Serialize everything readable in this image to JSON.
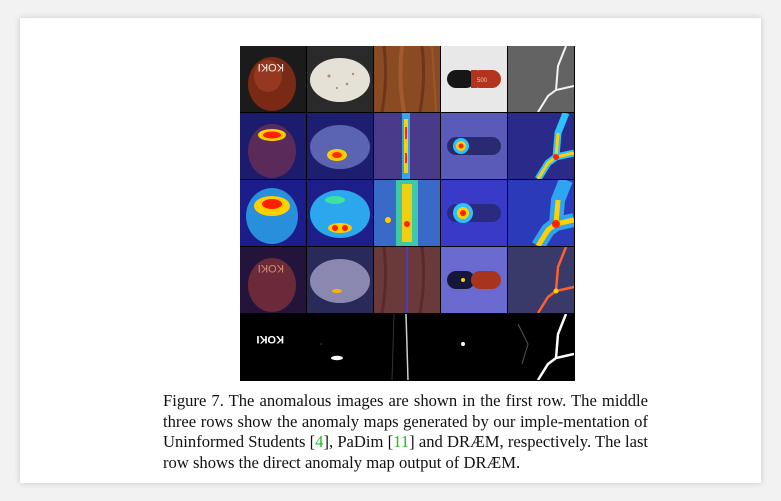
{
  "figure": {
    "rows": [
      "anomalous-images",
      "uninformed-students-maps",
      "padim-maps",
      "draem-maps",
      "draem-direct-output"
    ],
    "columns": [
      "hazelnut",
      "pill-tablet",
      "wood",
      "capsule",
      "cracked-surface"
    ],
    "inset_text": "KOKI"
  },
  "caption": {
    "p1": "Figure 7. The anomalous images are shown in the first row. The middle three rows show the anomaly maps generated by our imple-mentation of Uninformed Students [",
    "ref1": "4",
    "p2": "], PaDim [",
    "ref2": "11",
    "p3": "] and DRÆM, respectively. The last row shows the direct anomaly map output of DRÆM."
  },
  "colors": {
    "cite": "#1ec01e",
    "heat_low": "#2a2aa8",
    "heat_high": "#ff2000"
  }
}
